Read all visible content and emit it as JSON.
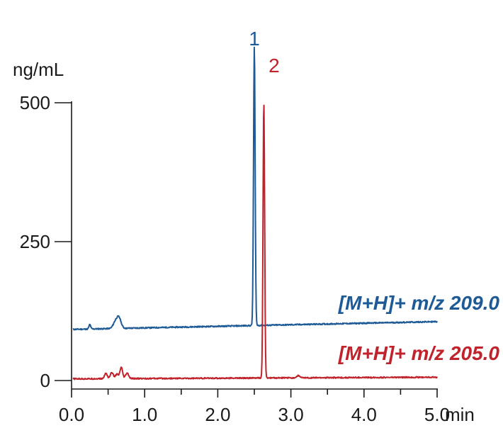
{
  "chart_data": {
    "type": "line",
    "y_unit_label": "ng/mL",
    "x_unit_label": "min",
    "xlim": [
      0,
      5
    ],
    "ylim": [
      0,
      600
    ],
    "x_ticks": [
      0,
      0.5,
      1,
      1.5,
      2,
      2.5,
      3,
      3.5,
      4,
      4.5,
      5
    ],
    "x_tick_labels": [
      {
        "value": 0,
        "label": "0.0"
      },
      {
        "value": 1,
        "label": "1.0"
      },
      {
        "value": 2,
        "label": "2.0"
      },
      {
        "value": 3,
        "label": "3.0"
      },
      {
        "value": 4,
        "label": "4.0"
      },
      {
        "value": 5,
        "label": "5.0"
      }
    ],
    "y_ticks": [
      0,
      250,
      500
    ],
    "y_tick_labels": [
      {
        "value": 0,
        "label": "0"
      },
      {
        "value": 250,
        "label": "250"
      },
      {
        "value": 500,
        "label": "500"
      }
    ],
    "grid": false,
    "series": [
      {
        "name": "[M+H]+ m/z 209.0",
        "color": "#1d5a96",
        "baseline": 92,
        "baseline_end": 106,
        "peaks": [
          {
            "x": 0.25,
            "height": 8,
            "width": 0.012
          },
          {
            "x": 0.6,
            "height": 12,
            "width": 0.03
          },
          {
            "x": 0.65,
            "height": 18,
            "width": 0.028
          },
          {
            "x": 2.5,
            "height": 503,
            "width": 0.011
          }
        ],
        "peak_label": {
          "text": "1",
          "x": 2.5,
          "y": 603
        }
      },
      {
        "name": "[M+H]+ m/z 205.0",
        "color": "#c0232c",
        "baseline": 3,
        "baseline_end": 6,
        "peaks": [
          {
            "x": 0.47,
            "height": 10,
            "width": 0.018
          },
          {
            "x": 0.55,
            "height": 11,
            "width": 0.02
          },
          {
            "x": 0.62,
            "height": 8,
            "width": 0.02
          },
          {
            "x": 0.68,
            "height": 20,
            "width": 0.018
          },
          {
            "x": 0.76,
            "height": 10,
            "width": 0.02
          },
          {
            "x": 2.63,
            "height": 497,
            "width": 0.011
          },
          {
            "x": 3.1,
            "height": 4,
            "width": 0.02
          }
        ],
        "peak_label": {
          "text": "2",
          "x": 2.77,
          "y": 555
        }
      }
    ]
  }
}
